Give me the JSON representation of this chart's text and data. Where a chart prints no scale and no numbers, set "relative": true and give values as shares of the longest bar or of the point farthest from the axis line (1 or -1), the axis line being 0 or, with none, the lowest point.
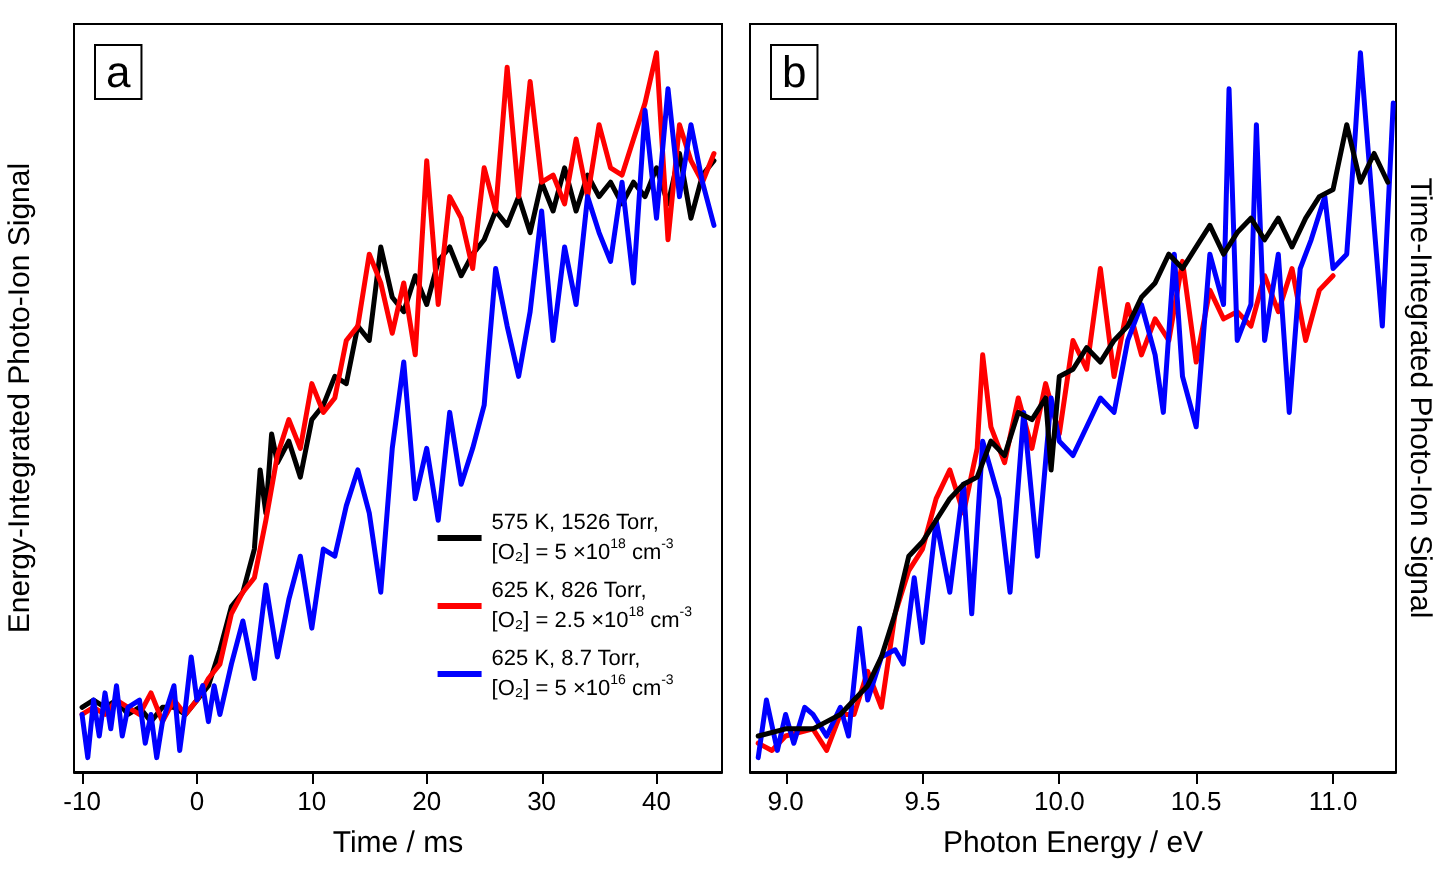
{
  "chart_data": [
    {
      "type": "line",
      "xlabel": "Time / ms",
      "ylabel": "Energy-Integrated Photo-Ion Signal",
      "annotations": [
        "a"
      ],
      "relative": true,
      "xlim": [
        -10.7,
        45.7
      ],
      "xticks": [
        -10,
        0,
        10,
        20,
        30,
        40
      ],
      "grid": false,
      "legend": "bottom right",
      "marker": "none",
      "line_style": "solid",
      "series": [
        {
          "name": "575 K, 1526 Torr,\n[O₂] = 5 ×10$^{18}$ cm$^{-3}$",
          "color": "#000000",
          "x": [
            -10,
            -9,
            -8,
            -7,
            -6,
            -5,
            -4,
            -3,
            -2,
            -1,
            0,
            1,
            2,
            3,
            4,
            5,
            5.5,
            6,
            6.5,
            7,
            8,
            9,
            10,
            11,
            12,
            13,
            14,
            15,
            16,
            17,
            18,
            19,
            20,
            21,
            22,
            23,
            24,
            25,
            26,
            27,
            28,
            29,
            30,
            31,
            32,
            33,
            34,
            35,
            36,
            37,
            38,
            39,
            40,
            41,
            42,
            43,
            44,
            45
          ],
          "values": [
            0.09,
            0.1,
            0.09,
            0.1,
            0.08,
            0.09,
            0.07,
            0.09,
            0.09,
            0.08,
            0.1,
            0.12,
            0.17,
            0.23,
            0.25,
            0.31,
            0.42,
            0.36,
            0.47,
            0.43,
            0.46,
            0.41,
            0.49,
            0.51,
            0.55,
            0.54,
            0.62,
            0.6,
            0.73,
            0.66,
            0.64,
            0.69,
            0.65,
            0.71,
            0.73,
            0.69,
            0.72,
            0.74,
            0.78,
            0.76,
            0.8,
            0.75,
            0.82,
            0.78,
            0.84,
            0.78,
            0.83,
            0.8,
            0.82,
            0.79,
            0.82,
            0.8,
            0.84,
            0.79,
            0.86,
            0.77,
            0.83,
            0.85
          ]
        },
        {
          "name": "625 K, 826 Torr,\n[O₂] = 2.5 ×10$^{18}$ cm$^{-3}$",
          "color": "#ff0000",
          "x": [
            -10,
            -9,
            -8,
            -7,
            -6,
            -5,
            -4,
            -3,
            -2,
            -1,
            0,
            1,
            2,
            3,
            4,
            5,
            6,
            7,
            8,
            9,
            10,
            11,
            12,
            13,
            14,
            15,
            16,
            17,
            18,
            19,
            20,
            21,
            22,
            23,
            24,
            25,
            26,
            27,
            28,
            29,
            30,
            31,
            32,
            33,
            34,
            35,
            36,
            37,
            38,
            39,
            40,
            41,
            42,
            43,
            44,
            45
          ],
          "values": [
            0.08,
            0.09,
            0.08,
            0.1,
            0.09,
            0.08,
            0.11,
            0.07,
            0.1,
            0.08,
            0.1,
            0.13,
            0.15,
            0.22,
            0.25,
            0.27,
            0.35,
            0.44,
            0.49,
            0.45,
            0.54,
            0.5,
            0.52,
            0.6,
            0.62,
            0.72,
            0.68,
            0.61,
            0.68,
            0.58,
            0.85,
            0.65,
            0.8,
            0.77,
            0.7,
            0.84,
            0.78,
            0.98,
            0.8,
            0.96,
            0.82,
            0.83,
            0.79,
            0.88,
            0.8,
            0.9,
            0.84,
            0.83,
            0.88,
            0.93,
            1.0,
            0.74,
            0.9,
            0.85,
            0.82,
            0.86
          ]
        },
        {
          "name": "625 K, 8.7 Torr,\n[O₂] = 5 ×10$^{16}$ cm$^{-3}$",
          "color": "#0000ff",
          "x": [
            -10,
            -9.5,
            -9,
            -8.5,
            -8,
            -7.5,
            -7,
            -6.5,
            -6,
            -5,
            -4.5,
            -4,
            -3.5,
            -3,
            -2,
            -1.5,
            -1,
            -0.5,
            0,
            0.5,
            1,
            1.5,
            2,
            3,
            4,
            5,
            6,
            7,
            8,
            9,
            10,
            11,
            12,
            13,
            14,
            15,
            16,
            17,
            18,
            19,
            20,
            21,
            22,
            23,
            24,
            25,
            26,
            27,
            28,
            29,
            30,
            31,
            32,
            33,
            34,
            35,
            36,
            37,
            38,
            39,
            40,
            41,
            42,
            43,
            44,
            45
          ],
          "values": [
            0.08,
            0.02,
            0.1,
            0.05,
            0.11,
            0.06,
            0.12,
            0.05,
            0.09,
            0.1,
            0.04,
            0.08,
            0.02,
            0.07,
            0.12,
            0.03,
            0.09,
            0.16,
            0.1,
            0.12,
            0.07,
            0.12,
            0.08,
            0.15,
            0.21,
            0.13,
            0.26,
            0.16,
            0.24,
            0.3,
            0.2,
            0.31,
            0.3,
            0.37,
            0.42,
            0.36,
            0.25,
            0.45,
            0.57,
            0.38,
            0.45,
            0.35,
            0.5,
            0.4,
            0.45,
            0.51,
            0.7,
            0.62,
            0.55,
            0.64,
            0.78,
            0.6,
            0.73,
            0.65,
            0.8,
            0.75,
            0.71,
            0.82,
            0.68,
            0.92,
            0.77,
            0.95,
            0.8,
            0.9,
            0.82,
            0.76
          ]
        }
      ]
    },
    {
      "type": "line",
      "xlabel": "Photon Energy / eV",
      "y2label": "Time-Integrated Photo-Ion Signal",
      "annotations": [
        "b"
      ],
      "relative": true,
      "xlim": [
        8.87,
        11.23
      ],
      "xticks": [
        {
          "value": 9,
          "label": "9.0"
        },
        9.5,
        {
          "value": 10,
          "label": "10.0"
        },
        10.5,
        {
          "value": 11,
          "label": "11.0"
        }
      ],
      "grid": false,
      "legend": false,
      "marker": "none",
      "line_style": "solid",
      "series": [
        {
          "color": "#ff0000",
          "x": [
            8.9,
            8.95,
            9.0,
            9.1,
            9.15,
            9.2,
            9.25,
            9.3,
            9.35,
            9.4,
            9.45,
            9.5,
            9.55,
            9.6,
            9.65,
            9.7,
            9.72,
            9.75,
            9.8,
            9.85,
            9.9,
            9.95,
            10.0,
            10.05,
            10.1,
            10.15,
            10.2,
            10.25,
            10.3,
            10.35,
            10.4,
            10.45,
            10.5,
            10.55,
            10.6,
            10.65,
            10.7,
            10.75,
            10.8,
            10.85,
            10.9,
            10.95,
            11.0
          ],
          "values": [
            0.04,
            0.03,
            0.05,
            0.06,
            0.03,
            0.08,
            0.08,
            0.14,
            0.09,
            0.22,
            0.28,
            0.31,
            0.38,
            0.42,
            0.36,
            0.45,
            0.58,
            0.48,
            0.43,
            0.52,
            0.45,
            0.54,
            0.47,
            0.6,
            0.56,
            0.7,
            0.55,
            0.65,
            0.58,
            0.63,
            0.6,
            0.71,
            0.57,
            0.67,
            0.63,
            0.64,
            0.62,
            0.69,
            0.64,
            0.7,
            0.6,
            0.67,
            0.69
          ]
        },
        {
          "color": "#0000ff",
          "x": [
            8.9,
            8.93,
            8.97,
            9.0,
            9.03,
            9.07,
            9.1,
            9.15,
            9.2,
            9.23,
            9.27,
            9.3,
            9.35,
            9.4,
            9.43,
            9.47,
            9.5,
            9.55,
            9.6,
            9.65,
            9.68,
            9.72,
            9.78,
            9.82,
            9.87,
            9.92,
            9.97,
            10.0,
            10.05,
            10.1,
            10.15,
            10.2,
            10.25,
            10.3,
            10.35,
            10.38,
            10.42,
            10.45,
            10.5,
            10.55,
            10.6,
            10.62,
            10.65,
            10.7,
            10.72,
            10.75,
            10.8,
            10.84,
            10.88,
            10.92,
            10.97,
            11.0,
            11.05,
            11.08,
            11.1,
            11.15,
            11.18,
            11.22
          ],
          "values": [
            0.02,
            0.1,
            0.03,
            0.08,
            0.04,
            0.09,
            0.08,
            0.05,
            0.09,
            0.05,
            0.2,
            0.1,
            0.16,
            0.17,
            0.15,
            0.27,
            0.18,
            0.35,
            0.25,
            0.4,
            0.22,
            0.46,
            0.38,
            0.25,
            0.5,
            0.3,
            0.52,
            0.46,
            0.44,
            0.48,
            0.52,
            0.5,
            0.6,
            0.65,
            0.58,
            0.5,
            0.72,
            0.55,
            0.48,
            0.72,
            0.65,
            0.95,
            0.6,
            0.65,
            0.9,
            0.6,
            0.72,
            0.5,
            0.7,
            0.74,
            0.8,
            0.7,
            0.72,
            0.88,
            1.0,
            0.76,
            0.62,
            0.93
          ]
        },
        {
          "color": "#000000",
          "x": [
            8.9,
            9.0,
            9.1,
            9.15,
            9.2,
            9.25,
            9.3,
            9.35,
            9.4,
            9.45,
            9.5,
            9.55,
            9.6,
            9.65,
            9.7,
            9.75,
            9.8,
            9.85,
            9.9,
            9.95,
            9.97,
            10.0,
            10.05,
            10.1,
            10.15,
            10.2,
            10.25,
            10.3,
            10.35,
            10.4,
            10.45,
            10.5,
            10.55,
            10.6,
            10.65,
            10.7,
            10.75,
            10.8,
            10.85,
            10.9,
            10.95,
            11.0,
            11.05,
            11.1,
            11.15,
            11.2
          ],
          "values": [
            0.05,
            0.06,
            0.06,
            0.07,
            0.08,
            0.1,
            0.12,
            0.16,
            0.22,
            0.3,
            0.32,
            0.35,
            0.38,
            0.4,
            0.41,
            0.46,
            0.44,
            0.5,
            0.49,
            0.52,
            0.42,
            0.55,
            0.56,
            0.59,
            0.57,
            0.6,
            0.62,
            0.66,
            0.68,
            0.72,
            0.7,
            0.73,
            0.76,
            0.72,
            0.75,
            0.77,
            0.74,
            0.77,
            0.73,
            0.77,
            0.8,
            0.81,
            0.9,
            0.82,
            0.86,
            0.82
          ]
        }
      ]
    }
  ]
}
